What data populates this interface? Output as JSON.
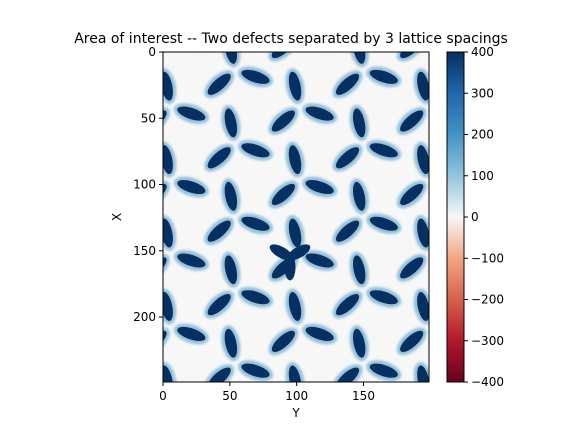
{
  "chart_data": {
    "type": "heatmap",
    "title": "Area of interest -- Two defects separated by 3 lattice spacings",
    "xlabel": "Y",
    "ylabel": "X",
    "x_axis_position": "bottom",
    "y_axis_inverted": true,
    "xlim": [
      0,
      199
    ],
    "ylim": [
      249,
      0
    ],
    "x_ticks": [
      0,
      50,
      100,
      150
    ],
    "y_ticks": [
      0,
      50,
      100,
      150,
      200
    ],
    "colormap": "RdBu",
    "clim": [
      -400,
      400
    ],
    "colorbar": {
      "ticks": [
        400,
        300,
        200,
        100,
        0,
        -100,
        -200,
        -300,
        -400
      ],
      "labels": [
        "400",
        "300",
        "200",
        "100",
        "0",
        "−100",
        "−200",
        "−300",
        "−400"
      ],
      "placement": "right"
    },
    "pattern": {
      "description_values": "dark blue elongated blobs (~400) forming a hexagonal network on a near-zero background",
      "blob_value": 400,
      "background_value": 0,
      "defect": {
        "center_y": 95,
        "center_x": 155
      }
    },
    "colors": {
      "high": "#053061",
      "mid_high": "#4393c3",
      "light": "#d1e5f0",
      "zero": "#f7f7f7",
      "low": "#67001f"
    }
  }
}
